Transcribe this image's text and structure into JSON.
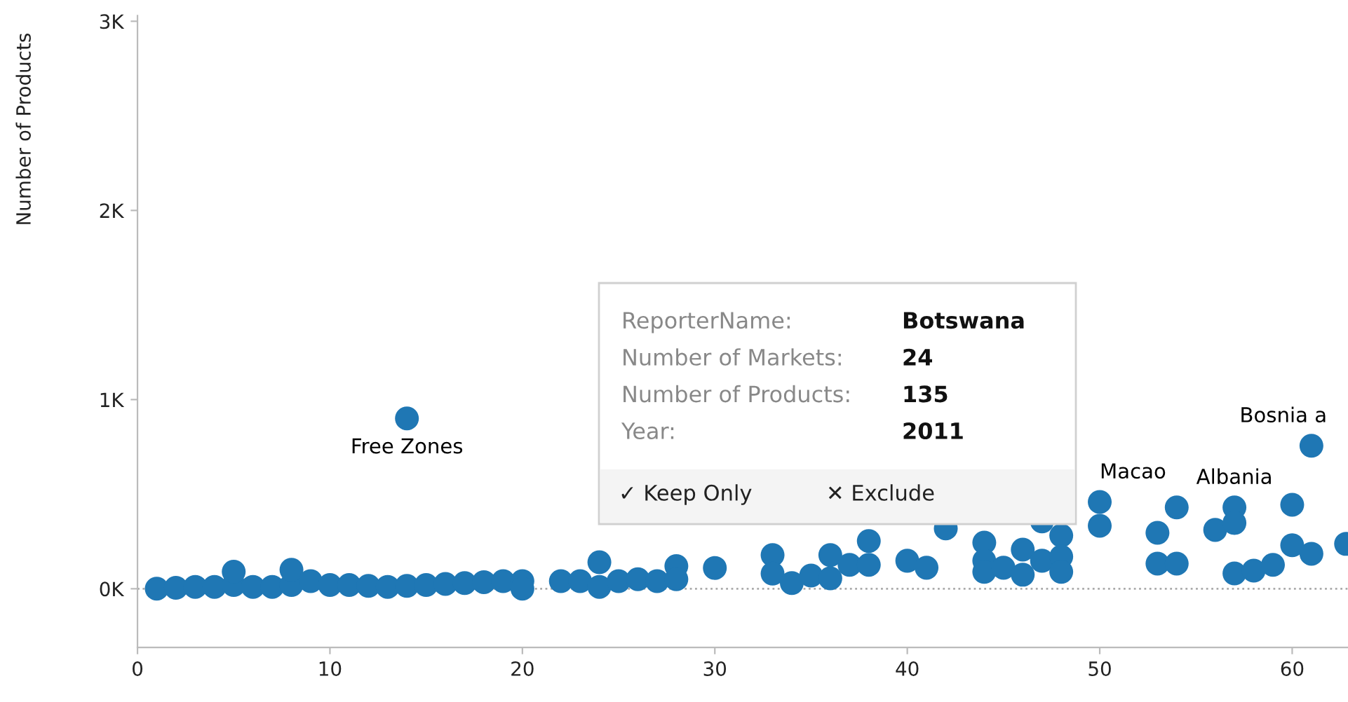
{
  "chart_data": {
    "type": "scatter",
    "ylabel": "Number of Products",
    "x": [
      1,
      2,
      3,
      4,
      5,
      5,
      6,
      7,
      8,
      8,
      9,
      10,
      11,
      12,
      13,
      14,
      14,
      15,
      16,
      17,
      18,
      19,
      20,
      20,
      22,
      23,
      24,
      24,
      25,
      26,
      27,
      28,
      28,
      30,
      33,
      33,
      34,
      35,
      36,
      36,
      37,
      38,
      38,
      40,
      41,
      42,
      44,
      44,
      44,
      45,
      46,
      46,
      47,
      47,
      48,
      48,
      48,
      50,
      50,
      53,
      53,
      54,
      54,
      56,
      57,
      57,
      57,
      58,
      59,
      60,
      60,
      61,
      61,
      62.8
    ],
    "values": [
      0,
      5,
      10,
      10,
      20,
      90,
      10,
      10,
      20,
      100,
      40,
      20,
      20,
      15,
      10,
      15,
      900,
      20,
      25,
      30,
      35,
      40,
      40,
      0,
      40,
      40,
      140,
      10,
      40,
      50,
      40,
      120,
      50,
      110,
      178,
      80,
      30,
      70,
      178,
      55,
      126,
      252,
      126,
      148,
      111,
      319,
      244,
      148,
      89,
      111,
      207,
      74,
      356,
      148,
      281,
      170,
      89,
      459,
      333,
      296,
      133,
      430,
      133,
      311,
      430,
      348,
      81,
      96,
      126,
      444,
      230,
      185,
      756,
      237
    ],
    "color": "#1f77b4",
    "marker": "circle",
    "xlim": [
      0,
      62.9
    ],
    "xticks": [
      0,
      10,
      20,
      30,
      40,
      50,
      60
    ],
    "ylim": [
      -310,
      3030
    ],
    "yticks": [
      {
        "value": 0,
        "label": "0K"
      },
      {
        "value": 1000,
        "label": "1K"
      },
      {
        "value": 2000,
        "label": "2K"
      },
      {
        "value": 3000,
        "label": "3K"
      }
    ],
    "ref_lines": [
      {
        "axis": "y",
        "value": 0,
        "color": "#aaaaaa",
        "line_style": "dotted"
      }
    ],
    "annotations": [
      {
        "text": "Free Zones",
        "x": 14,
        "y": 900
      },
      {
        "text": "Macao",
        "x": 50,
        "y": 459
      },
      {
        "text": "Albania",
        "x": 57,
        "y": 430
      },
      {
        "text": "Bosnia a",
        "x": 61,
        "y": 756
      },
      "ReporterName:",
      "Botswana",
      "Number of Markets:",
      "24",
      "Number of Products:",
      "135",
      "Year:",
      "2011",
      "✓ Keep Only",
      "✕ Exclude"
    ]
  }
}
